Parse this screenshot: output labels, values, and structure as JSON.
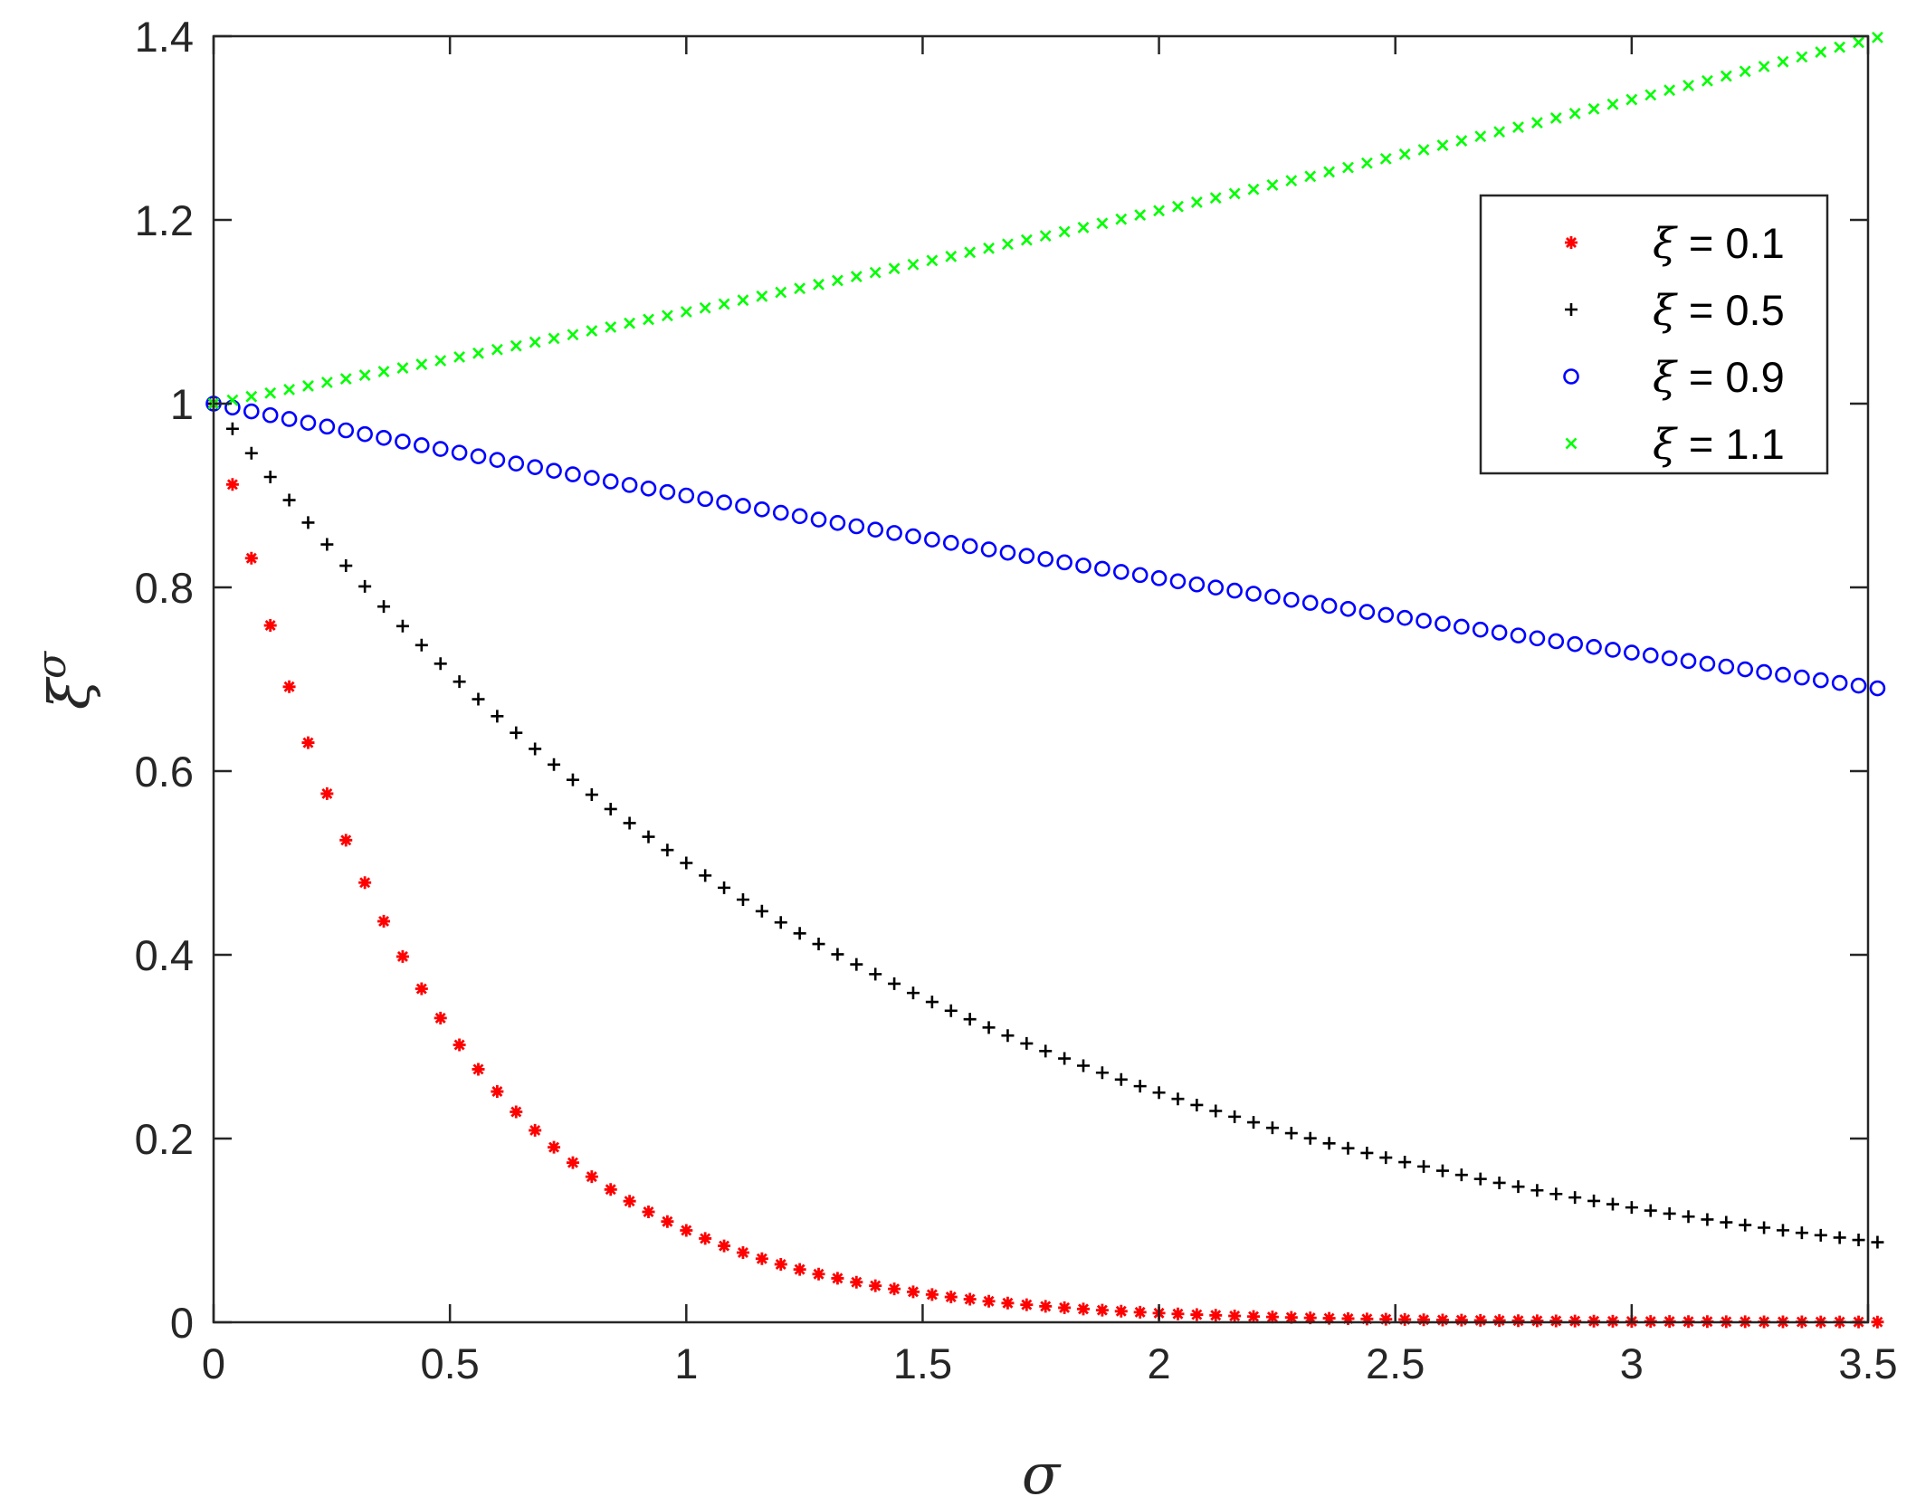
{
  "chart_data": {
    "type": "scatter",
    "title": "",
    "xlabel": "σ",
    "ylabel_base": "ξ",
    "ylabel_sup": "σ",
    "xlim": [
      0,
      3.5
    ],
    "ylim": [
      0,
      1.4
    ],
    "xticks": [
      0,
      0.5,
      1,
      1.5,
      2,
      2.5,
      3,
      3.5
    ],
    "xtick_labels": [
      "0",
      "0.5",
      "1",
      "1.5",
      "2",
      "2.5",
      "3",
      "3.5"
    ],
    "yticks": [
      0,
      0.2,
      0.4,
      0.6,
      0.8,
      1,
      1.2,
      1.4
    ],
    "ytick_labels": [
      "0",
      "0.2",
      "0.4",
      "0.6",
      "0.8",
      "1",
      "1.2",
      "1.4"
    ],
    "grid": false,
    "legend_position": "top-right",
    "x": {
      "start": 0,
      "stop": 3.5,
      "step": 0.04
    },
    "series": [
      {
        "name": "ξ = 0.1",
        "symbol": "ξ",
        "value_label": "= 0.1",
        "base": 0.1,
        "marker": "asterisk",
        "color": "#ff0000"
      },
      {
        "name": "ξ = 0.5",
        "symbol": "ξ",
        "value_label": "= 0.5",
        "base": 0.5,
        "marker": "plus",
        "color": "#000000"
      },
      {
        "name": "ξ = 0.9",
        "symbol": "ξ",
        "value_label": "= 0.9",
        "base": 0.9,
        "marker": "circle",
        "color": "#0000ff"
      },
      {
        "name": "ξ = 1.1",
        "symbol": "ξ",
        "value_label": "= 1.1",
        "base": 1.1,
        "marker": "x",
        "color": "#00ff00"
      }
    ]
  }
}
